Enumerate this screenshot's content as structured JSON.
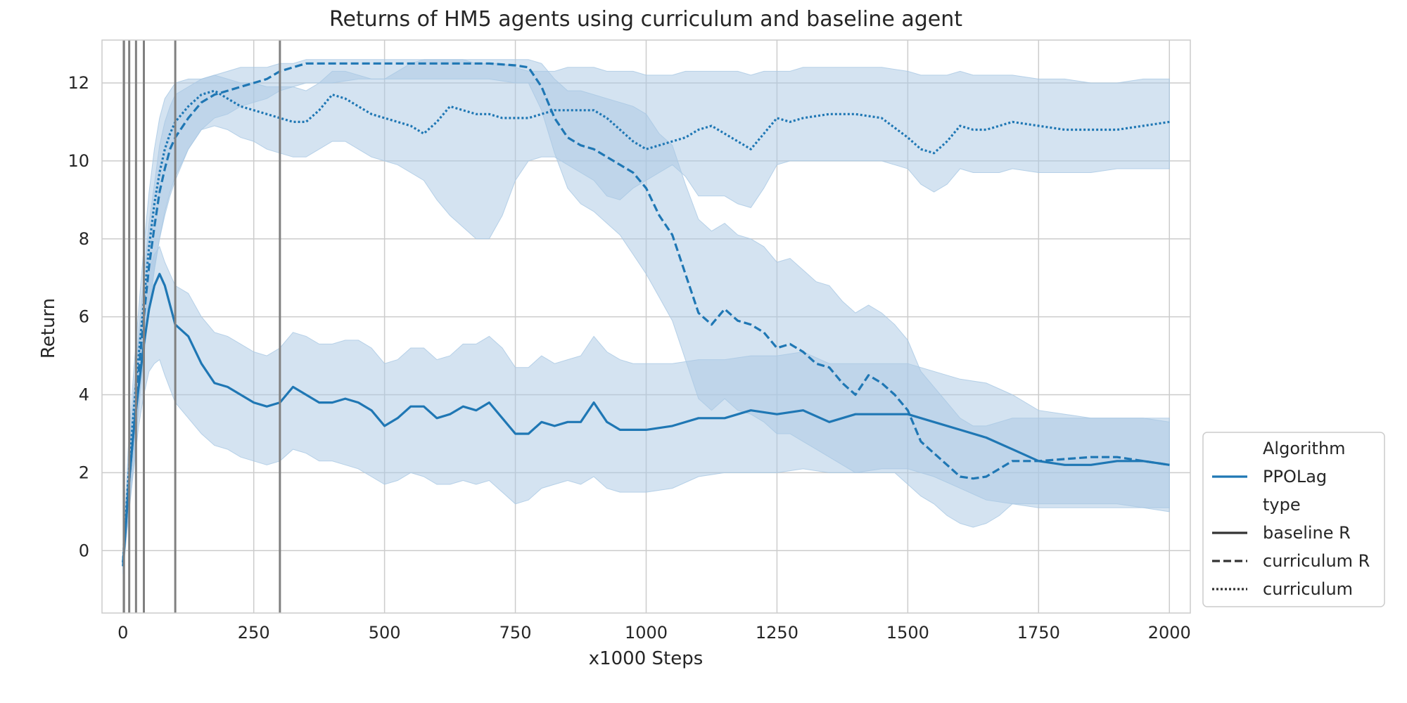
{
  "chart_data": {
    "type": "line",
    "title": "Returns of HM5 agents using curriculum and baseline agent",
    "xlabel": "x1000 Steps",
    "ylabel": "Return",
    "xlim": [
      -40,
      2040
    ],
    "ylim": [
      -1.6,
      13.1
    ],
    "xticks": [
      0,
      250,
      500,
      750,
      1000,
      1250,
      1500,
      1750,
      2000
    ],
    "yticks": [
      0,
      2,
      4,
      6,
      8,
      10,
      12
    ],
    "grid": true,
    "legend_placement": "lower-right outside",
    "color": "#1f77b4",
    "band_color": "#a9c8e3",
    "vline_color": "#808080",
    "curriculum_vlines": [
      2,
      12,
      25,
      40,
      100,
      300
    ],
    "legend": {
      "entries": [
        {
          "label": "Algorithm",
          "kind": "header"
        },
        {
          "label": "PPOLag",
          "kind": "line",
          "style": "solid",
          "color": "#1f77b4"
        },
        {
          "label": "type",
          "kind": "header"
        },
        {
          "label": "baseline R",
          "kind": "line",
          "style": "solid",
          "color": "#333333"
        },
        {
          "label": "curriculum R",
          "kind": "line",
          "style": "dashed",
          "color": "#333333"
        },
        {
          "label": "curriculum",
          "kind": "line",
          "style": "dotted",
          "color": "#333333"
        }
      ]
    },
    "series": [
      {
        "name": "baseline R",
        "dash": "solid",
        "x": [
          0,
          10,
          20,
          30,
          40,
          50,
          60,
          70,
          80,
          100,
          125,
          150,
          175,
          200,
          225,
          250,
          275,
          300,
          325,
          350,
          375,
          400,
          425,
          450,
          475,
          500,
          525,
          550,
          575,
          600,
          625,
          650,
          675,
          700,
          725,
          750,
          775,
          800,
          825,
          850,
          875,
          900,
          925,
          950,
          975,
          1000,
          1050,
          1100,
          1150,
          1200,
          1250,
          1300,
          1350,
          1400,
          1450,
          1500,
          1550,
          1600,
          1650,
          1700,
          1750,
          1800,
          1850,
          1900,
          1950,
          2000
        ],
        "y": [
          -0.4,
          1.5,
          3.0,
          4.2,
          5.3,
          6.2,
          6.8,
          7.1,
          6.8,
          5.8,
          5.5,
          4.8,
          4.3,
          4.2,
          4.0,
          3.8,
          3.7,
          3.8,
          4.2,
          4.0,
          3.8,
          3.8,
          3.9,
          3.8,
          3.6,
          3.2,
          3.4,
          3.7,
          3.7,
          3.4,
          3.5,
          3.7,
          3.6,
          3.8,
          3.4,
          3.0,
          3.0,
          3.3,
          3.2,
          3.3,
          3.3,
          3.8,
          3.3,
          3.1,
          3.1,
          3.1,
          3.2,
          3.4,
          3.4,
          3.6,
          3.5,
          3.6,
          3.3,
          3.5,
          3.5,
          3.5,
          3.3,
          3.1,
          2.9,
          2.6,
          2.3,
          2.2,
          2.2,
          2.3,
          2.3,
          2.2
        ],
        "lower": [
          -0.6,
          0.8,
          2.0,
          3.2,
          4.0,
          4.6,
          4.8,
          4.9,
          4.5,
          3.8,
          3.4,
          3.0,
          2.7,
          2.6,
          2.4,
          2.3,
          2.2,
          2.3,
          2.6,
          2.5,
          2.3,
          2.3,
          2.2,
          2.1,
          1.9,
          1.7,
          1.8,
          2.0,
          1.9,
          1.7,
          1.7,
          1.8,
          1.7,
          1.8,
          1.5,
          1.2,
          1.3,
          1.6,
          1.7,
          1.8,
          1.7,
          1.9,
          1.6,
          1.5,
          1.5,
          1.5,
          1.6,
          1.9,
          2.0,
          2.0,
          2.0,
          2.1,
          2.0,
          2.0,
          2.1,
          2.1,
          1.9,
          1.6,
          1.3,
          1.2,
          1.1,
          1.1,
          1.1,
          1.1,
          1.1,
          1.0
        ],
        "upper": [
          -0.2,
          2.2,
          4.0,
          5.3,
          6.4,
          7.2,
          7.6,
          7.8,
          7.4,
          6.8,
          6.6,
          6.0,
          5.6,
          5.5,
          5.3,
          5.1,
          5.0,
          5.2,
          5.6,
          5.5,
          5.3,
          5.3,
          5.4,
          5.4,
          5.2,
          4.8,
          4.9,
          5.2,
          5.2,
          4.9,
          5.0,
          5.3,
          5.3,
          5.5,
          5.2,
          4.7,
          4.7,
          5.0,
          4.8,
          4.9,
          5.0,
          5.5,
          5.1,
          4.9,
          4.8,
          4.8,
          4.8,
          4.9,
          4.9,
          5.0,
          5.0,
          5.1,
          4.8,
          4.8,
          4.8,
          4.8,
          4.6,
          4.4,
          4.3,
          4.0,
          3.6,
          3.5,
          3.4,
          3.4,
          3.4,
          3.4
        ]
      },
      {
        "name": "curriculum R",
        "dash": "dashed",
        "x": [
          0,
          10,
          20,
          30,
          40,
          50,
          60,
          70,
          80,
          90,
          100,
          125,
          150,
          175,
          200,
          225,
          250,
          275,
          300,
          325,
          350,
          400,
          450,
          500,
          550,
          600,
          650,
          700,
          750,
          775,
          800,
          825,
          850,
          875,
          900,
          925,
          950,
          975,
          1000,
          1025,
          1050,
          1075,
          1100,
          1125,
          1150,
          1175,
          1200,
          1225,
          1250,
          1275,
          1300,
          1325,
          1350,
          1375,
          1400,
          1425,
          1450,
          1475,
          1500,
          1525,
          1550,
          1575,
          1600,
          1625,
          1650,
          1675,
          1700,
          1750,
          1800,
          1850,
          1900,
          1950,
          2000
        ],
        "y": [
          -0.3,
          1.5,
          3.0,
          4.6,
          6.0,
          7.3,
          8.3,
          9.2,
          9.8,
          10.3,
          10.6,
          11.1,
          11.5,
          11.7,
          11.8,
          11.9,
          12.0,
          12.1,
          12.3,
          12.4,
          12.5,
          12.5,
          12.5,
          12.5,
          12.5,
          12.5,
          12.5,
          12.5,
          12.45,
          12.4,
          11.9,
          11.1,
          10.6,
          10.4,
          10.3,
          10.1,
          9.9,
          9.7,
          9.3,
          8.6,
          8.1,
          7.1,
          6.1,
          5.8,
          6.2,
          5.9,
          5.8,
          5.6,
          5.2,
          5.3,
          5.1,
          4.8,
          4.7,
          4.3,
          4.0,
          4.5,
          4.3,
          4.0,
          3.6,
          2.8,
          2.5,
          2.2,
          1.9,
          1.85,
          1.9,
          2.1,
          2.3,
          2.3,
          2.35,
          2.4,
          2.4,
          2.3,
          2.2
        ],
        "lower": [
          -0.5,
          0.8,
          2.2,
          3.6,
          5.0,
          6.2,
          7.2,
          8.0,
          8.6,
          9.1,
          9.5,
          10.3,
          10.8,
          11.1,
          11.2,
          11.4,
          11.5,
          11.6,
          11.8,
          11.9,
          12.0,
          12.0,
          12.1,
          12.1,
          12.1,
          12.1,
          12.1,
          12.1,
          12.0,
          12.0,
          11.3,
          10.2,
          9.3,
          8.9,
          8.7,
          8.4,
          8.1,
          7.6,
          7.1,
          6.5,
          5.9,
          4.9,
          3.9,
          3.6,
          3.9,
          3.6,
          3.5,
          3.3,
          3.0,
          3.0,
          2.8,
          2.6,
          2.4,
          2.2,
          2.0,
          2.0,
          2.0,
          2.0,
          1.7,
          1.4,
          1.2,
          0.9,
          0.7,
          0.6,
          0.7,
          0.9,
          1.2,
          1.2,
          1.2,
          1.2,
          1.2,
          1.1,
          1.1
        ],
        "upper": [
          -0.1,
          2.2,
          3.8,
          5.6,
          7.0,
          8.4,
          9.4,
          10.4,
          11.0,
          11.4,
          11.7,
          11.9,
          12.1,
          12.2,
          12.3,
          12.4,
          12.4,
          12.4,
          12.5,
          12.5,
          12.6,
          12.6,
          12.6,
          12.6,
          12.6,
          12.6,
          12.6,
          12.6,
          12.6,
          12.6,
          12.5,
          12.1,
          11.8,
          11.8,
          11.7,
          11.6,
          11.5,
          11.4,
          11.2,
          10.7,
          10.4,
          9.4,
          8.5,
          8.2,
          8.4,
          8.1,
          8.0,
          7.8,
          7.4,
          7.5,
          7.2,
          6.9,
          6.8,
          6.4,
          6.1,
          6.3,
          6.1,
          5.8,
          5.4,
          4.6,
          4.2,
          3.8,
          3.4,
          3.2,
          3.2,
          3.3,
          3.4,
          3.4,
          3.4,
          3.4,
          3.4,
          3.4,
          3.3
        ]
      },
      {
        "name": "curriculum",
        "dash": "dotted",
        "x": [
          0,
          10,
          20,
          30,
          40,
          50,
          60,
          70,
          80,
          90,
          100,
          125,
          150,
          175,
          200,
          225,
          250,
          275,
          300,
          325,
          350,
          375,
          400,
          425,
          450,
          475,
          500,
          525,
          550,
          575,
          600,
          625,
          650,
          675,
          700,
          725,
          750,
          775,
          800,
          825,
          850,
          875,
          900,
          925,
          950,
          975,
          1000,
          1025,
          1050,
          1075,
          1100,
          1125,
          1150,
          1175,
          1200,
          1225,
          1250,
          1275,
          1300,
          1350,
          1400,
          1450,
          1500,
          1525,
          1550,
          1575,
          1600,
          1625,
          1650,
          1675,
          1700,
          1750,
          1800,
          1850,
          1900,
          1950,
          2000
        ],
        "y": [
          -0.3,
          1.8,
          3.5,
          5.0,
          6.4,
          7.8,
          8.9,
          9.7,
          10.3,
          10.7,
          11.0,
          11.4,
          11.7,
          11.8,
          11.6,
          11.4,
          11.3,
          11.2,
          11.1,
          11.0,
          11.0,
          11.3,
          11.7,
          11.6,
          11.4,
          11.2,
          11.1,
          11.0,
          10.9,
          10.7,
          11.0,
          11.4,
          11.3,
          11.2,
          11.2,
          11.1,
          11.1,
          11.1,
          11.2,
          11.3,
          11.3,
          11.3,
          11.3,
          11.1,
          10.8,
          10.5,
          10.3,
          10.4,
          10.5,
          10.6,
          10.8,
          10.9,
          10.7,
          10.5,
          10.3,
          10.7,
          11.1,
          11.0,
          11.1,
          11.2,
          11.2,
          11.1,
          10.6,
          10.3,
          10.2,
          10.5,
          10.9,
          10.8,
          10.8,
          10.9,
          11.0,
          10.9,
          10.8,
          10.8,
          10.8,
          10.9,
          11.0
        ],
        "lower": [
          -0.5,
          1.0,
          2.5,
          3.8,
          5.0,
          6.2,
          7.2,
          8.0,
          8.7,
          9.2,
          9.6,
          10.3,
          10.8,
          10.9,
          10.8,
          10.6,
          10.5,
          10.3,
          10.2,
          10.1,
          10.1,
          10.3,
          10.5,
          10.5,
          10.3,
          10.1,
          10.0,
          9.9,
          9.7,
          9.5,
          9.0,
          8.6,
          8.3,
          8.0,
          8.0,
          8.6,
          9.5,
          10.0,
          10.1,
          10.1,
          9.9,
          9.7,
          9.5,
          9.1,
          9.0,
          9.3,
          9.5,
          9.7,
          9.9,
          9.6,
          9.1,
          9.1,
          9.1,
          8.9,
          8.8,
          9.3,
          9.9,
          10.0,
          10.0,
          10.0,
          10.0,
          10.0,
          9.8,
          9.4,
          9.2,
          9.4,
          9.8,
          9.7,
          9.7,
          9.7,
          9.8,
          9.7,
          9.7,
          9.7,
          9.8,
          9.8,
          9.8
        ],
        "upper": [
          -0.1,
          2.6,
          4.5,
          6.2,
          7.8,
          9.2,
          10.3,
          11.1,
          11.6,
          11.8,
          12.0,
          12.1,
          12.1,
          12.2,
          12.1,
          12.0,
          12.0,
          11.9,
          11.9,
          11.9,
          11.8,
          12.0,
          12.3,
          12.3,
          12.2,
          12.1,
          12.1,
          12.3,
          12.5,
          12.6,
          12.6,
          12.6,
          12.6,
          12.5,
          12.5,
          12.5,
          12.4,
          12.3,
          12.3,
          12.3,
          12.4,
          12.4,
          12.4,
          12.3,
          12.3,
          12.3,
          12.2,
          12.2,
          12.2,
          12.3,
          12.3,
          12.3,
          12.3,
          12.3,
          12.2,
          12.3,
          12.3,
          12.3,
          12.4,
          12.4,
          12.4,
          12.4,
          12.3,
          12.2,
          12.2,
          12.2,
          12.3,
          12.2,
          12.2,
          12.2,
          12.2,
          12.1,
          12.1,
          12.0,
          12.0,
          12.1,
          12.1
        ]
      }
    ]
  }
}
